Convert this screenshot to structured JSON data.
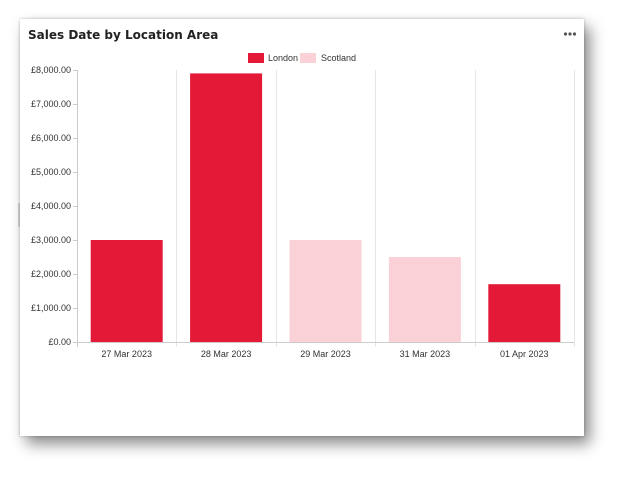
{
  "card": {
    "title": "Sales Date by Location Area",
    "menu_icon": "more-horizontal-icon"
  },
  "colors": {
    "London": "#e31937",
    "Scotland": "#f9d1d7",
    "grid": "#e6e6e6",
    "axis": "#cccccc",
    "text": "#333333"
  },
  "chart_data": {
    "type": "bar",
    "title": "Sales Date by Location Area",
    "xlabel": "",
    "ylabel": "",
    "legend": {
      "position": "top-center",
      "entries": [
        "London",
        "Scotland"
      ]
    },
    "categories": [
      "27 Mar 2023",
      "28 Mar 2023",
      "29 Mar 2023",
      "31 Mar 2023",
      "01 Apr 2023"
    ],
    "series_by_category": [
      "London",
      "London",
      "Scotland",
      "Scotland",
      "London"
    ],
    "values": [
      3000,
      7900,
      3000,
      2500,
      1700
    ],
    "series": [
      {
        "name": "London",
        "values": [
          3000,
          7900,
          null,
          null,
          1700
        ]
      },
      {
        "name": "Scotland",
        "values": [
          null,
          null,
          3000,
          2500,
          null
        ]
      }
    ],
    "ylim": [
      0,
      8000
    ],
    "yticks": [
      0,
      1000,
      2000,
      3000,
      4000,
      5000,
      6000,
      7000,
      8000
    ],
    "ytick_labels": [
      "£0.00",
      "£1,000.00",
      "£2,000.00",
      "£3,000.00",
      "£4,000.00",
      "£5,000.00",
      "£6,000.00",
      "£7,000.00",
      "£8,000.00"
    ],
    "grid": {
      "vertical": true,
      "horizontal": false
    }
  }
}
